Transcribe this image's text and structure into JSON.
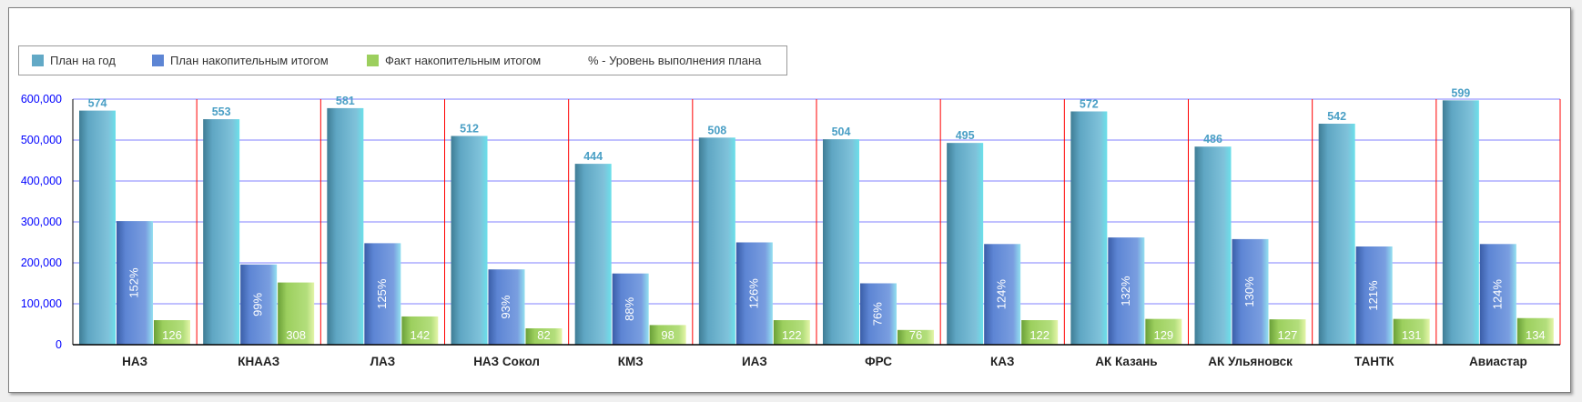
{
  "legend": [
    {
      "label": "План на год",
      "color": "#62a9c6"
    },
    {
      "label": "План накопительным итогом",
      "color": "#5d85d4"
    },
    {
      "label": "Факт накопительным итогом",
      "color": "#9ccf5e"
    },
    {
      "label": "% - Уровень выполнения плана"
    }
  ],
  "chart_data": {
    "type": "bar",
    "title": "",
    "xlabel": "",
    "ylabel": "",
    "ylim": [
      0,
      600000
    ],
    "yticks": [
      "0",
      "100,000",
      "200,000",
      "300,000",
      "400,000",
      "500,000",
      "600,000"
    ],
    "categories": [
      "НАЗ",
      "КНААЗ",
      "ЛАЗ",
      "НАЗ Сокол",
      "КМЗ",
      "ИАЗ",
      "ФРС",
      "КАЗ",
      "АК Казань",
      "АК Ульяновск",
      "ТАНТК",
      "Авиастар"
    ],
    "grid": true,
    "legend_position": "top-left",
    "series": [
      {
        "name": "План на год",
        "color": "#62a9c6",
        "values": [
          572000,
          551000,
          578000,
          510000,
          442000,
          506000,
          502000,
          493000,
          570000,
          484000,
          540000,
          597000
        ],
        "labels": [
          "574",
          "553",
          "581",
          "512",
          "444",
          "508",
          "504",
          "495",
          "572",
          "486",
          "542",
          "599"
        ]
      },
      {
        "name": "План накопительным итогом",
        "color": "#5d85d4",
        "values": [
          302000,
          196000,
          248000,
          184000,
          174000,
          250000,
          150000,
          246000,
          262000,
          258000,
          240000,
          246000
        ],
        "labels": [
          "152%",
          "99%",
          "125%",
          "93%",
          "88%",
          "126%",
          "76%",
          "124%",
          "132%",
          "130%",
          "121%",
          "124%"
        ]
      },
      {
        "name": "Факт накопительным итогом",
        "color": "#9ccf5e",
        "values": [
          60000,
          152000,
          69000,
          40000,
          48000,
          60000,
          36000,
          60000,
          63000,
          62000,
          63000,
          65000
        ],
        "labels": [
          "126",
          "308",
          "142",
          "82",
          "98",
          "122",
          "76",
          "122",
          "129",
          "127",
          "131",
          "134"
        ]
      }
    ]
  }
}
